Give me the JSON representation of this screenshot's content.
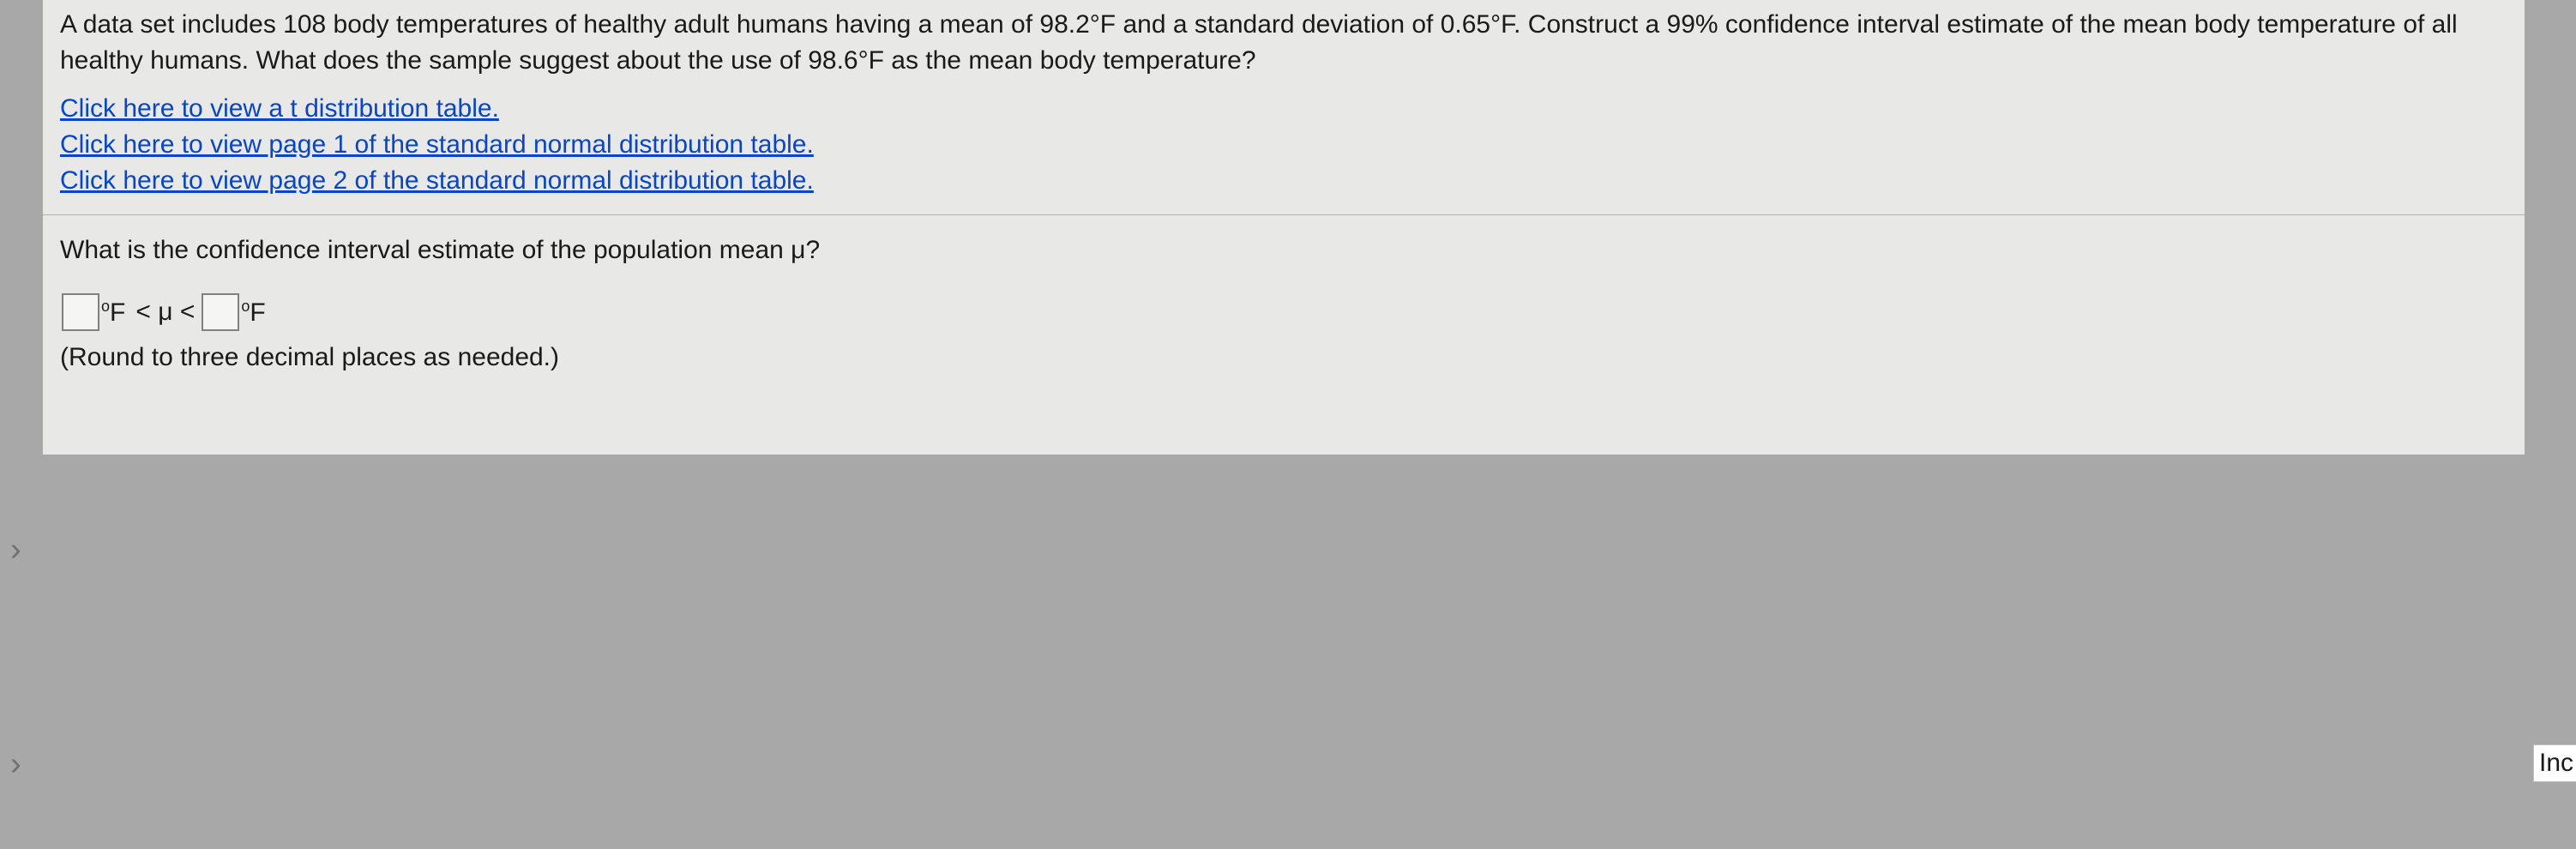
{
  "problem": {
    "text": "A data set includes 108 body temperatures of healthy adult humans having a mean of 98.2°F and a standard deviation of 0.65°F. Construct a 99% confidence interval estimate of the mean body temperature of all healthy humans. What does the sample suggest about the use of 98.6°F as the mean body temperature?"
  },
  "links": {
    "t_table": "Click here to view a t distribution table.",
    "z_table_p1": "Click here to view page 1 of the standard normal distribution table.",
    "z_table_p2": "Click here to view page 2 of the standard normal distribution table."
  },
  "question": {
    "prompt": "What is the confidence interval estimate of the population mean μ?",
    "unit_label_1": "°F",
    "mu_expr": "< μ <",
    "unit_label_2": "°F",
    "hint": "(Round to three decimal places as needed.)"
  },
  "side": {
    "label": "Inc"
  },
  "colors": {
    "background": "#a8a8a8",
    "panel": "#e8e8e7",
    "text": "#1a1a1a",
    "link": "#0645cc",
    "divider": "#b0b0af",
    "input_border": "#808080",
    "chevron": "#707070"
  },
  "typography": {
    "body_fontsize": 30,
    "font_family": "Arial"
  }
}
